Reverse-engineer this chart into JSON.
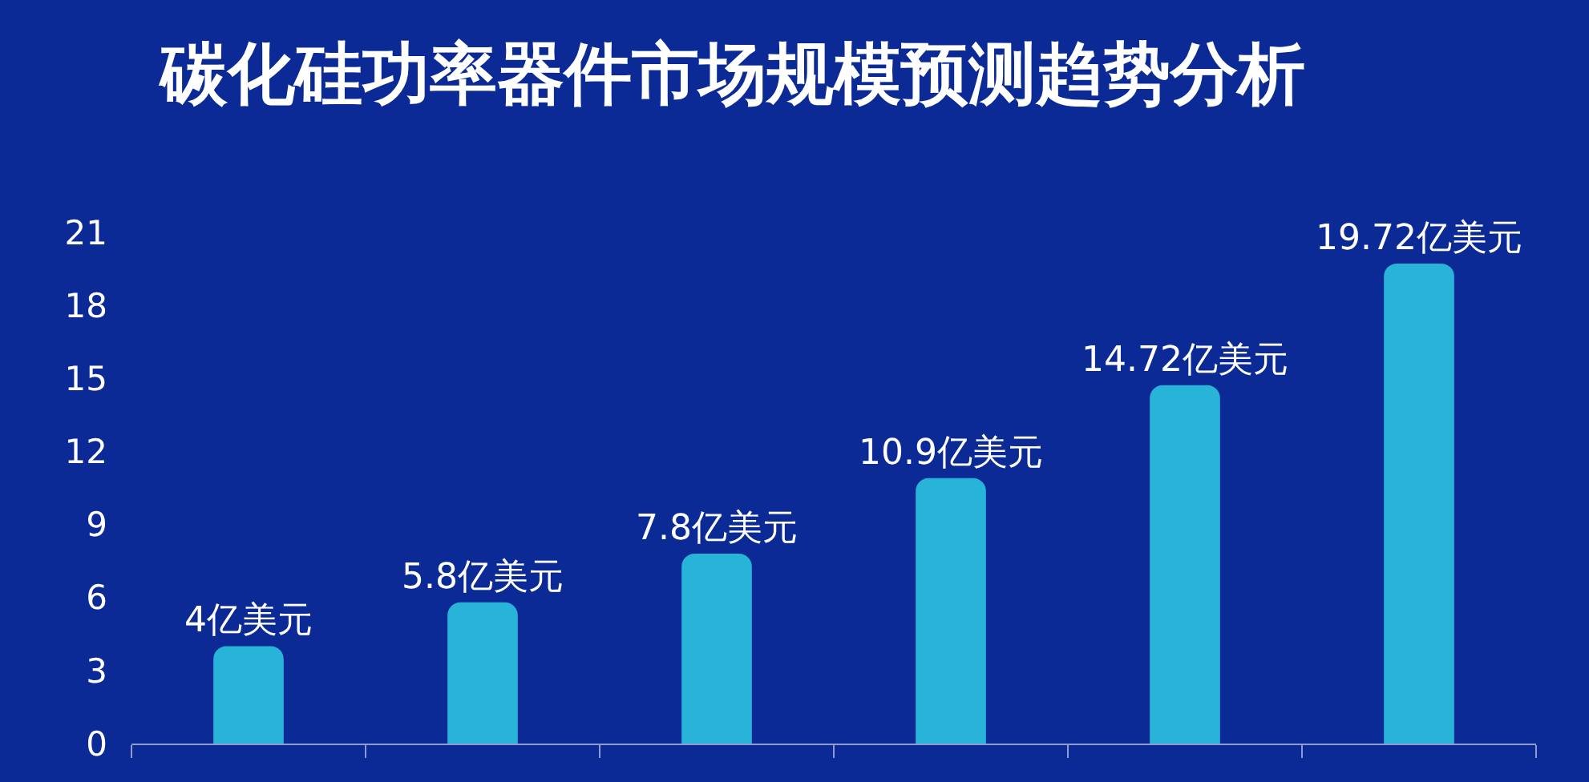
{
  "chart_data": {
    "type": "bar",
    "title": "碳化硅功率器件市场规模预测趋势分析",
    "categories": [
      null,
      null,
      null,
      null,
      null,
      null
    ],
    "values": [
      4,
      5.8,
      7.8,
      10.9,
      14.72,
      19.72
    ],
    "value_labels": [
      "4亿美元",
      "5.8亿美元",
      "7.8亿美元",
      "10.9亿美元",
      "14.72亿美元",
      "19.72亿美元"
    ],
    "color": "#27b4d8",
    "ylim": [
      0,
      21
    ],
    "yticks": [
      0,
      3,
      6,
      9,
      12,
      15,
      18,
      21
    ],
    "grid": false
  }
}
